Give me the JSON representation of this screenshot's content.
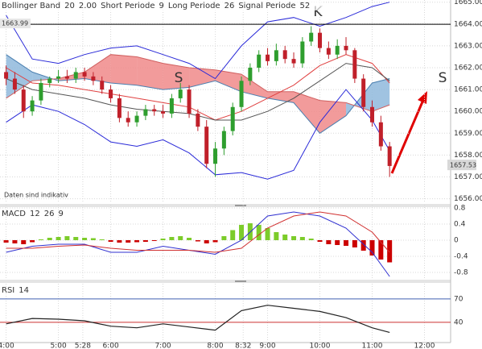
{
  "chart_data": [
    {
      "type": "candlestick",
      "indicators": [
        {
          "label": "Bollinger Band",
          "params": [
            "20",
            "2.00"
          ]
        },
        {
          "label": "Short Periode",
          "params": [
            "9"
          ]
        },
        {
          "label": "Long Periode",
          "params": [
            "26"
          ]
        },
        {
          "label": "Signal Periode",
          "params": [
            "52"
          ]
        }
      ],
      "x": [
        240,
        250,
        260,
        270,
        280,
        290,
        300,
        310,
        320,
        330,
        340,
        350,
        360,
        370,
        380,
        390,
        400,
        410,
        420,
        430,
        440,
        450,
        460,
        470,
        480,
        490,
        500,
        510,
        520,
        530,
        540,
        550,
        560,
        570,
        580,
        590,
        600,
        610,
        620,
        630,
        640,
        650,
        660,
        670,
        680
      ],
      "open": [
        1661.8,
        1661.5,
        1661.0,
        1660.0,
        1660.5,
        1661.3,
        1661.5,
        1661.6,
        1661.5,
        1661.8,
        1661.6,
        1661.4,
        1661.0,
        1660.6,
        1659.7,
        1659.5,
        1659.8,
        1660.1,
        1660.0,
        1659.9,
        1660.6,
        1661.0,
        1659.9,
        1659.3,
        1657.6,
        1658.3,
        1659.1,
        1660.2,
        1661.4,
        1662.0,
        1662.6,
        1662.3,
        1662.8,
        1662.4,
        1662.2,
        1663.2,
        1663.6,
        1662.9,
        1662.6,
        1663.0,
        1662.8,
        1661.5,
        1660.2,
        1659.5,
        1658.4
      ],
      "high": [
        1662.1,
        1661.8,
        1661.2,
        1660.7,
        1661.5,
        1661.6,
        1661.9,
        1661.9,
        1662.0,
        1662.0,
        1661.8,
        1661.6,
        1661.2,
        1660.8,
        1660.0,
        1660.0,
        1660.3,
        1660.3,
        1660.3,
        1660.8,
        1661.3,
        1661.2,
        1660.1,
        1659.6,
        1658.6,
        1659.3,
        1660.4,
        1661.6,
        1662.2,
        1662.8,
        1662.9,
        1663.1,
        1663.0,
        1662.7,
        1663.4,
        1663.9,
        1663.8,
        1663.2,
        1663.3,
        1663.4,
        1662.9,
        1661.7,
        1660.5,
        1659.8,
        1658.6
      ],
      "low": [
        1661.2,
        1660.8,
        1659.7,
        1659.8,
        1660.3,
        1661.1,
        1661.3,
        1661.3,
        1661.3,
        1661.4,
        1661.2,
        1660.8,
        1660.4,
        1659.5,
        1659.3,
        1659.3,
        1659.6,
        1659.8,
        1659.7,
        1659.7,
        1660.4,
        1659.7,
        1659.1,
        1657.4,
        1657.0,
        1658.0,
        1658.9,
        1660.0,
        1661.2,
        1661.8,
        1662.1,
        1662.1,
        1662.2,
        1662.0,
        1662.0,
        1663.0,
        1662.7,
        1662.4,
        1662.4,
        1662.6,
        1661.3,
        1660.0,
        1659.3,
        1658.2,
        1657.0
      ],
      "close": [
        1661.5,
        1661.0,
        1660.0,
        1660.5,
        1661.3,
        1661.5,
        1661.6,
        1661.5,
        1661.8,
        1661.6,
        1661.4,
        1661.0,
        1660.6,
        1659.7,
        1659.5,
        1659.8,
        1660.1,
        1660.0,
        1659.9,
        1660.6,
        1661.0,
        1659.9,
        1659.3,
        1657.6,
        1658.3,
        1659.1,
        1660.2,
        1661.4,
        1662.0,
        1662.6,
        1662.3,
        1662.8,
        1662.4,
        1662.2,
        1663.2,
        1663.6,
        1662.9,
        1662.6,
        1663.0,
        1662.8,
        1661.5,
        1660.2,
        1659.5,
        1658.4,
        1657.5
      ],
      "up_color": "#2e9e2e",
      "down_color": "#c0202a",
      "overlay_x": [
        240,
        270,
        300,
        330,
        360,
        390,
        420,
        450,
        480,
        510,
        540,
        570,
        600,
        630,
        660,
        680
      ],
      "cloud": {
        "span_a": [
          1662.6,
          1661.8,
          1661.4,
          1661.5,
          1661.3,
          1661.2,
          1661.0,
          1661.1,
          1661.4,
          1660.9,
          1660.6,
          1660.4,
          1659.0,
          1659.8,
          1661.3,
          1661.5
        ],
        "span_b": [
          1660.6,
          1661.4,
          1661.5,
          1661.8,
          1662.6,
          1662.5,
          1662.2,
          1662.0,
          1661.9,
          1661.7,
          1660.9,
          1660.9,
          1660.5,
          1660.4,
          1660.0,
          1660.3
        ],
        "up_color": "#8fb8dc",
        "down_color": "#f08a8a"
      },
      "overlays": [
        {
          "color": "#2a2ad8",
          "values": [
            1664.4,
            1662.4,
            1662.2,
            1662.6,
            1662.9,
            1663.0,
            1662.6,
            1662.2,
            1661.5,
            1663.0,
            1664.1,
            1664.3,
            1663.9,
            1664.3,
            1664.8,
            1665.0
          ]
        },
        {
          "color": "#e04040",
          "values": [
            1662.0,
            1661.3,
            1661.2,
            1661.0,
            1660.8,
            1660.6,
            1660.4,
            1660.2,
            1659.6,
            1660.0,
            1660.6,
            1661.2,
            1662.1,
            1662.6,
            1662.2,
            1661.3
          ]
        },
        {
          "color": "#2a2ad8",
          "values": [
            1659.5,
            1660.3,
            1660.0,
            1659.4,
            1658.6,
            1658.4,
            1658.7,
            1658.1,
            1657.1,
            1657.2,
            1656.9,
            1657.3,
            1659.5,
            1661.0,
            1659.6,
            1658.2
          ]
        },
        {
          "color": "#555555",
          "values": [
            1661.5,
            1661.0,
            1660.8,
            1660.6,
            1660.3,
            1660.1,
            1660.0,
            1659.9,
            1659.6,
            1659.6,
            1660.0,
            1660.6,
            1661.4,
            1662.2,
            1662.0,
            1661.4
          ]
        }
      ],
      "ref_line": 1663.99,
      "last_price": 1657.53,
      "note": "Daten sind indikativ",
      "annotations": [
        {
          "text": "K"
        },
        {
          "text": "S"
        },
        {
          "text": "S"
        }
      ],
      "xlim": [
        233,
        750
      ],
      "ylim": [
        1655.8,
        1665.1
      ],
      "yticks": [
        {
          "value": 1656,
          "label": "1656.00"
        },
        {
          "value": 1657,
          "label": "1657.00"
        },
        {
          "value": 1658,
          "label": "1658.00"
        },
        {
          "value": 1659,
          "label": "1659.00"
        },
        {
          "value": 1660,
          "label": "1660.00"
        },
        {
          "value": 1661,
          "label": "1661.00"
        },
        {
          "value": 1662,
          "label": "1662.00"
        },
        {
          "value": 1663,
          "label": "1663.00"
        },
        {
          "value": 1664,
          "label": "1664.00"
        },
        {
          "value": 1665,
          "label": "1665.00"
        }
      ],
      "grid": true
    },
    {
      "type": "bar",
      "title": "MACD",
      "params": [
        "12",
        "26",
        "9"
      ],
      "x": [
        240,
        250,
        260,
        270,
        280,
        290,
        300,
        310,
        320,
        330,
        340,
        350,
        360,
        370,
        380,
        390,
        400,
        410,
        420,
        430,
        440,
        450,
        460,
        470,
        480,
        490,
        500,
        510,
        520,
        530,
        540,
        550,
        560,
        570,
        580,
        590,
        600,
        610,
        620,
        630,
        640,
        650,
        660,
        670,
        680
      ],
      "values": [
        -0.06,
        -0.08,
        -0.1,
        -0.05,
        0.02,
        0.06,
        0.08,
        0.1,
        0.08,
        0.06,
        0.05,
        0.02,
        -0.04,
        -0.06,
        -0.06,
        -0.05,
        -0.04,
        -0.02,
        0.04,
        0.08,
        0.1,
        0.06,
        -0.03,
        -0.08,
        -0.05,
        0.1,
        0.25,
        0.38,
        0.42,
        0.38,
        0.3,
        0.2,
        0.14,
        0.1,
        0.08,
        0.04,
        -0.04,
        -0.1,
        -0.12,
        -0.14,
        -0.18,
        -0.26,
        -0.38,
        -0.48,
        -0.55
      ],
      "positive_color": "#7ccc2a",
      "negative_color": "#cc0000",
      "line_x": [
        240,
        270,
        300,
        330,
        360,
        390,
        420,
        450,
        480,
        510,
        540,
        570,
        600,
        630,
        660,
        680
      ],
      "lines": [
        {
          "color": "#3030d0",
          "values": [
            -0.3,
            -0.15,
            -0.1,
            -0.1,
            -0.3,
            -0.3,
            -0.15,
            -0.25,
            -0.35,
            0.0,
            0.6,
            0.7,
            0.6,
            0.3,
            -0.3,
            -0.9
          ]
        },
        {
          "color": "#d03030",
          "values": [
            -0.2,
            -0.2,
            -0.15,
            -0.12,
            -0.2,
            -0.25,
            -0.25,
            -0.25,
            -0.3,
            -0.2,
            0.3,
            0.6,
            0.7,
            0.6,
            0.2,
            -0.3
          ]
        }
      ],
      "xlim": [
        233,
        750
      ],
      "ylim": [
        -0.94,
        0.88
      ],
      "yticks": [
        0.8,
        0.4,
        0,
        -0.4,
        -0.8
      ],
      "grid": true
    },
    {
      "type": "line",
      "title": "RSI",
      "params": [
        "14"
      ],
      "x": [
        240,
        270,
        300,
        330,
        360,
        390,
        420,
        450,
        480,
        510,
        540,
        570,
        600,
        630,
        660,
        680
      ],
      "series": [
        {
          "color": "#222222",
          "values": [
            38,
            45,
            44,
            42,
            35,
            33,
            38,
            34,
            30,
            55,
            62,
            58,
            54,
            46,
            33,
            27
          ]
        }
      ],
      "xlim": [
        233,
        750
      ],
      "ylim": [
        14,
        89.6
      ],
      "yticks": [
        70,
        40
      ],
      "level_colors": [
        "#4060b0",
        "#cc3030"
      ],
      "xticks": [
        {
          "value": 240,
          "label": "4:00"
        },
        {
          "value": 300,
          "label": "5:00"
        },
        {
          "value": 328,
          "label": "5:28"
        },
        {
          "value": 360,
          "label": "6:00"
        },
        {
          "value": 420,
          "label": "7:00"
        },
        {
          "value": 480,
          "label": "8:00"
        },
        {
          "value": 512,
          "label": "8:32"
        },
        {
          "value": 540,
          "label": "9:00"
        },
        {
          "value": 600,
          "label": "10:00"
        },
        {
          "value": 660,
          "label": "11:00"
        },
        {
          "value": 720,
          "label": "12:00"
        }
      ]
    }
  ]
}
